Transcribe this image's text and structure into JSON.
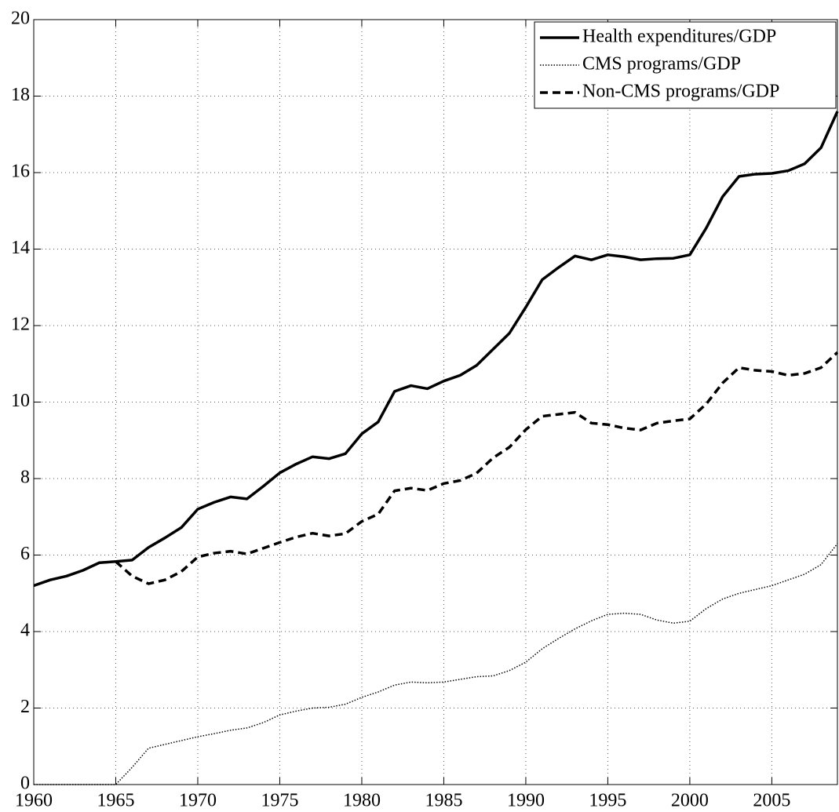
{
  "chart_data": {
    "type": "line",
    "x": [
      1960,
      1961,
      1962,
      1963,
      1964,
      1965,
      1966,
      1967,
      1968,
      1969,
      1970,
      1971,
      1972,
      1973,
      1974,
      1975,
      1976,
      1977,
      1978,
      1979,
      1980,
      1981,
      1982,
      1983,
      1984,
      1985,
      1986,
      1987,
      1988,
      1989,
      1990,
      1991,
      1992,
      1993,
      1994,
      1995,
      1996,
      1997,
      1998,
      1999,
      2000,
      2001,
      2002,
      2003,
      2004,
      2005,
      2006,
      2007,
      2008,
      2009
    ],
    "series": [
      {
        "name": "Health expenditures/GDP",
        "color": "#000000",
        "dash": "solid",
        "values": [
          5.2,
          5.35,
          5.45,
          5.6,
          5.8,
          5.83,
          5.87,
          6.2,
          6.45,
          6.72,
          7.2,
          7.38,
          7.52,
          7.47,
          7.8,
          8.15,
          8.38,
          8.57,
          8.52,
          8.65,
          9.17,
          9.48,
          10.28,
          10.43,
          10.35,
          10.55,
          10.7,
          10.96,
          11.38,
          11.8,
          12.48,
          13.2,
          13.52,
          13.82,
          13.72,
          13.85,
          13.8,
          13.72,
          13.75,
          13.76,
          13.85,
          14.55,
          15.37,
          15.9,
          15.96,
          15.98,
          16.05,
          16.23,
          16.65,
          17.6
        ]
      },
      {
        "name": "CMS programs/GDP",
        "color": "#000000",
        "dash": "dotted",
        "values": [
          0,
          0,
          0,
          0,
          0,
          0,
          0.45,
          0.95,
          1.05,
          1.15,
          1.25,
          1.33,
          1.42,
          1.48,
          1.62,
          1.82,
          1.92,
          2.0,
          2.02,
          2.1,
          2.28,
          2.42,
          2.6,
          2.68,
          2.66,
          2.68,
          2.75,
          2.82,
          2.84,
          2.98,
          3.2,
          3.55,
          3.82,
          4.07,
          4.28,
          4.45,
          4.48,
          4.45,
          4.3,
          4.22,
          4.27,
          4.6,
          4.85,
          5.0,
          5.1,
          5.2,
          5.35,
          5.5,
          5.75,
          6.3
        ]
      },
      {
        "name": "Non-CMS programs/GDP",
        "color": "#000000",
        "dash": "dashed",
        "values": [
          null,
          null,
          null,
          null,
          null,
          5.83,
          5.45,
          5.25,
          5.35,
          5.57,
          5.95,
          6.05,
          6.1,
          6.03,
          6.18,
          6.33,
          6.47,
          6.57,
          6.5,
          6.56,
          6.88,
          7.07,
          7.68,
          7.75,
          7.69,
          7.87,
          7.95,
          8.14,
          8.54,
          8.82,
          9.28,
          9.63,
          9.68,
          9.73,
          9.45,
          9.41,
          9.32,
          9.27,
          9.45,
          9.51,
          9.56,
          9.95,
          10.5,
          10.9,
          10.83,
          10.8,
          10.7,
          10.75,
          10.9,
          11.3
        ]
      }
    ],
    "xlim": [
      1960,
      2009
    ],
    "xticks": [
      1960,
      1965,
      1970,
      1975,
      1980,
      1985,
      1990,
      1995,
      2000,
      2005
    ],
    "ylim": [
      0,
      20
    ],
    "yticks": [
      0,
      2,
      4,
      6,
      8,
      10,
      12,
      14,
      16,
      18,
      20
    ],
    "grid": true,
    "legend": "top-right"
  }
}
